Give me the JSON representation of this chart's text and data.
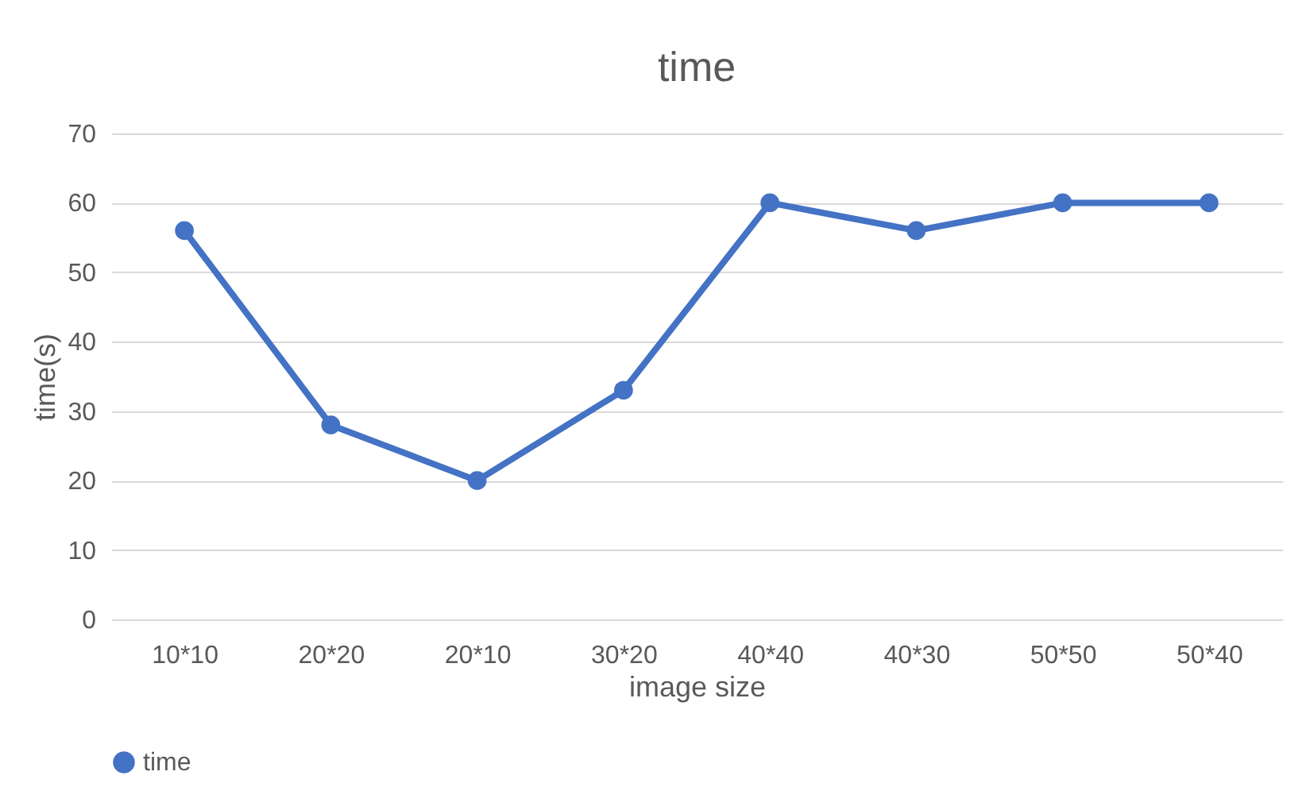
{
  "chart_data": {
    "type": "line",
    "title": "time",
    "xlabel": "image size",
    "ylabel": "time(s)",
    "categories": [
      "10*10",
      "20*20",
      "20*10",
      "30*20",
      "40*40",
      "40*30",
      "50*50",
      "50*40"
    ],
    "series": [
      {
        "name": "time",
        "color": "#4472c4",
        "values": [
          56,
          28,
          20,
          33,
          60,
          56,
          60,
          60
        ]
      }
    ],
    "ylim": [
      0,
      70
    ],
    "yticks": [
      0,
      10,
      20,
      30,
      40,
      50,
      60,
      70
    ],
    "grid": "y",
    "legend": "bottom",
    "marker": "circle",
    "line_style": "solid"
  }
}
